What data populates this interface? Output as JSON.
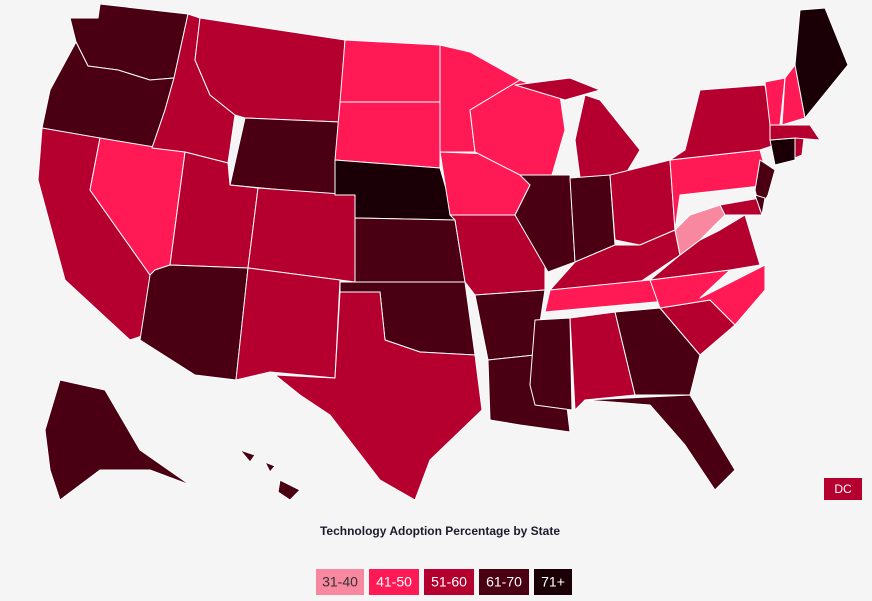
{
  "title": "Technology Adoption Percentage by State",
  "legend": [
    {
      "label": "31-40",
      "color": "#f7889f"
    },
    {
      "label": "41-50",
      "color": "#ff1a55"
    },
    {
      "label": "51-60",
      "color": "#b5002f"
    },
    {
      "label": "61-70",
      "color": "#4a0012"
    },
    {
      "label": "71+",
      "color": "#1a0006"
    }
  ],
  "dc": {
    "label": "DC",
    "class": "51-60"
  },
  "regions": [
    {
      "class": "61-70"
    },
    {
      "class": "61-70"
    },
    {
      "class": "51-60"
    },
    {
      "class": "41-50"
    },
    {
      "class": "51-60"
    },
    {
      "class": "51-60"
    },
    {
      "class": "61-70"
    },
    {
      "class": "51-60"
    },
    {
      "class": "61-70"
    },
    {
      "class": "51-60"
    },
    {
      "class": "51-60"
    },
    {
      "class": "41-50"
    },
    {
      "class": "41-50"
    },
    {
      "class": "71+"
    },
    {
      "class": "61-70"
    },
    {
      "class": "61-70"
    },
    {
      "class": "51-60"
    },
    {
      "class": "41-50"
    },
    {
      "class": "41-50"
    },
    {
      "class": "51-60"
    },
    {
      "class": "61-70"
    },
    {
      "class": "61-70"
    },
    {
      "class": "41-50"
    },
    {
      "class": "61-70"
    },
    {
      "class": "51-60"
    },
    {
      "class": "61-70"
    },
    {
      "class": "51-60"
    },
    {
      "class": "51-60"
    },
    {
      "class": "41-50"
    },
    {
      "class": "61-70"
    },
    {
      "class": "51-60"
    },
    {
      "class": "61-70"
    },
    {
      "class": "61-70"
    },
    {
      "class": "51-60"
    },
    {
      "class": "41-50"
    },
    {
      "class": "51-60"
    },
    {
      "class": "31-40"
    },
    {
      "class": "41-50"
    },
    {
      "class": "51-60"
    },
    {
      "class": "51-60"
    },
    {
      "class": "61-70"
    },
    {
      "class": "61-70"
    },
    {
      "class": "71+"
    },
    {
      "class": "51-60"
    },
    {
      "class": "51-60"
    },
    {
      "class": "41-50"
    },
    {
      "class": "41-50"
    },
    {
      "class": "71+"
    },
    {
      "class": "61-70"
    },
    {
      "class": "61-70"
    }
  ]
}
